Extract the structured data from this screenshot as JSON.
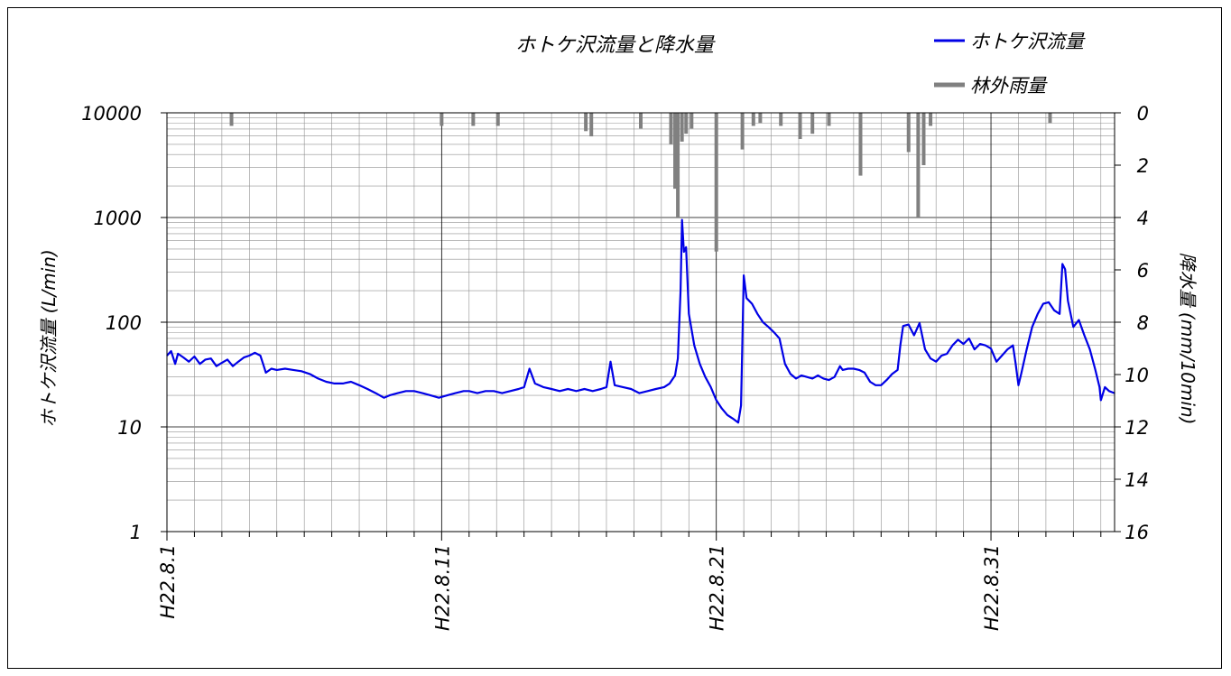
{
  "chart_data": {
    "type": "line",
    "title": "ホトケ沢流量と降水量",
    "y_left_label": "ホトケ沢流量 (L/min)",
    "y_right_label": "降水量 (mm/10min)",
    "x_axis": {
      "unit": "day of August 2010 (H22)",
      "range": [
        1,
        35.5
      ],
      "major_ticks": [
        1,
        11,
        21,
        31
      ],
      "tick_labels": [
        "H22.8.1",
        "H22.8.11",
        "H22.8.21",
        "H22.8.31"
      ],
      "minor_tick_interval": 1
    },
    "y_left": {
      "scale": "log",
      "range": [
        1,
        10000
      ],
      "ticks": [
        1,
        10,
        100,
        1000,
        10000
      ],
      "tick_labels": [
        "1",
        "10",
        "100",
        "1000",
        "10000"
      ]
    },
    "y_right": {
      "scale": "linear",
      "inverted": true,
      "range": [
        0,
        16
      ],
      "ticks": [
        0,
        2,
        4,
        6,
        8,
        10,
        12,
        14,
        16
      ],
      "tick_labels": [
        "0",
        "2",
        "4",
        "6",
        "8",
        "10",
        "12",
        "14",
        "16"
      ]
    },
    "grid": true,
    "legend_position": "top-right",
    "series": [
      {
        "name": "ホトケ沢流量",
        "color": "#0000e6",
        "axis": "left",
        "points": [
          [
            1.0,
            48
          ],
          [
            1.15,
            53
          ],
          [
            1.3,
            40
          ],
          [
            1.4,
            50
          ],
          [
            1.6,
            46
          ],
          [
            1.8,
            42
          ],
          [
            2.0,
            47
          ],
          [
            2.2,
            40
          ],
          [
            2.4,
            44
          ],
          [
            2.6,
            45
          ],
          [
            2.8,
            38
          ],
          [
            3.0,
            41
          ],
          [
            3.2,
            44
          ],
          [
            3.4,
            38
          ],
          [
            3.6,
            42
          ],
          [
            3.8,
            46
          ],
          [
            4.0,
            48
          ],
          [
            4.2,
            51
          ],
          [
            4.4,
            48
          ],
          [
            4.5,
            40
          ],
          [
            4.6,
            33
          ],
          [
            4.8,
            36
          ],
          [
            5.0,
            35
          ],
          [
            5.3,
            36
          ],
          [
            5.6,
            35
          ],
          [
            5.9,
            34
          ],
          [
            6.2,
            32
          ],
          [
            6.5,
            29
          ],
          [
            6.8,
            27
          ],
          [
            7.1,
            26
          ],
          [
            7.4,
            26
          ],
          [
            7.7,
            27
          ],
          [
            8.0,
            25
          ],
          [
            8.3,
            23
          ],
          [
            8.6,
            21
          ],
          [
            8.9,
            19
          ],
          [
            9.1,
            20
          ],
          [
            9.4,
            21
          ],
          [
            9.7,
            22
          ],
          [
            10.0,
            22
          ],
          [
            10.3,
            21
          ],
          [
            10.6,
            20
          ],
          [
            10.9,
            19
          ],
          [
            11.2,
            20
          ],
          [
            11.5,
            21
          ],
          [
            11.8,
            22
          ],
          [
            12.0,
            22
          ],
          [
            12.3,
            21
          ],
          [
            12.6,
            22
          ],
          [
            12.9,
            22
          ],
          [
            13.2,
            21
          ],
          [
            13.5,
            22
          ],
          [
            13.8,
            23
          ],
          [
            14.0,
            24
          ],
          [
            14.2,
            36
          ],
          [
            14.4,
            26
          ],
          [
            14.7,
            24
          ],
          [
            15.0,
            23
          ],
          [
            15.3,
            22
          ],
          [
            15.6,
            23
          ],
          [
            15.9,
            22
          ],
          [
            16.2,
            23
          ],
          [
            16.5,
            22
          ],
          [
            16.8,
            23
          ],
          [
            17.0,
            24
          ],
          [
            17.15,
            42
          ],
          [
            17.3,
            25
          ],
          [
            17.6,
            24
          ],
          [
            17.9,
            23
          ],
          [
            18.2,
            21
          ],
          [
            18.5,
            22
          ],
          [
            18.8,
            23
          ],
          [
            19.1,
            24
          ],
          [
            19.3,
            26
          ],
          [
            19.5,
            31
          ],
          [
            19.6,
            45
          ],
          [
            19.7,
            200
          ],
          [
            19.75,
            950
          ],
          [
            19.82,
            470
          ],
          [
            19.9,
            520
          ],
          [
            20.0,
            120
          ],
          [
            20.2,
            60
          ],
          [
            20.4,
            40
          ],
          [
            20.6,
            30
          ],
          [
            20.8,
            24
          ],
          [
            21.0,
            18
          ],
          [
            21.2,
            15
          ],
          [
            21.4,
            13
          ],
          [
            21.6,
            12
          ],
          [
            21.8,
            11
          ],
          [
            21.9,
            16
          ],
          [
            22.0,
            280
          ],
          [
            22.1,
            170
          ],
          [
            22.3,
            150
          ],
          [
            22.5,
            120
          ],
          [
            22.7,
            100
          ],
          [
            22.9,
            90
          ],
          [
            23.1,
            80
          ],
          [
            23.3,
            70
          ],
          [
            23.5,
            40
          ],
          [
            23.7,
            32
          ],
          [
            23.9,
            29
          ],
          [
            24.1,
            31
          ],
          [
            24.3,
            30
          ],
          [
            24.5,
            29
          ],
          [
            24.7,
            31
          ],
          [
            24.9,
            29
          ],
          [
            25.1,
            28
          ],
          [
            25.3,
            30
          ],
          [
            25.5,
            38
          ],
          [
            25.6,
            35
          ],
          [
            25.8,
            36
          ],
          [
            26.0,
            36
          ],
          [
            26.2,
            35
          ],
          [
            26.4,
            33
          ],
          [
            26.6,
            27
          ],
          [
            26.8,
            25
          ],
          [
            27.0,
            25
          ],
          [
            27.2,
            28
          ],
          [
            27.4,
            32
          ],
          [
            27.6,
            35
          ],
          [
            27.7,
            60
          ],
          [
            27.8,
            92
          ],
          [
            28.0,
            95
          ],
          [
            28.2,
            75
          ],
          [
            28.4,
            98
          ],
          [
            28.6,
            55
          ],
          [
            28.8,
            45
          ],
          [
            29.0,
            42
          ],
          [
            29.2,
            48
          ],
          [
            29.4,
            50
          ],
          [
            29.6,
            60
          ],
          [
            29.8,
            68
          ],
          [
            30.0,
            62
          ],
          [
            30.2,
            70
          ],
          [
            30.4,
            55
          ],
          [
            30.6,
            62
          ],
          [
            30.8,
            60
          ],
          [
            31.0,
            56
          ],
          [
            31.2,
            42
          ],
          [
            31.4,
            48
          ],
          [
            31.6,
            55
          ],
          [
            31.8,
            60
          ],
          [
            31.9,
            40
          ],
          [
            32.0,
            25
          ],
          [
            32.1,
            32
          ],
          [
            32.3,
            55
          ],
          [
            32.5,
            90
          ],
          [
            32.7,
            120
          ],
          [
            32.9,
            150
          ],
          [
            33.1,
            155
          ],
          [
            33.3,
            130
          ],
          [
            33.5,
            120
          ],
          [
            33.6,
            360
          ],
          [
            33.7,
            320
          ],
          [
            33.8,
            160
          ],
          [
            34.0,
            90
          ],
          [
            34.2,
            105
          ],
          [
            34.4,
            75
          ],
          [
            34.6,
            55
          ],
          [
            34.8,
            35
          ],
          [
            34.95,
            24
          ],
          [
            35.0,
            18
          ],
          [
            35.15,
            24
          ],
          [
            35.3,
            22
          ],
          [
            35.5,
            21
          ]
        ]
      },
      {
        "name": "林外雨量",
        "color": "#808080",
        "axis": "right",
        "points": [
          [
            3.35,
            0.5
          ],
          [
            11.0,
            0.5
          ],
          [
            12.15,
            0.5
          ],
          [
            13.05,
            0.5
          ],
          [
            16.25,
            0.7
          ],
          [
            16.45,
            0.9
          ],
          [
            18.25,
            0.6
          ],
          [
            19.35,
            1.2
          ],
          [
            19.5,
            2.9
          ],
          [
            19.6,
            4.0
          ],
          [
            19.75,
            1.1
          ],
          [
            19.9,
            0.8
          ],
          [
            20.1,
            0.6
          ],
          [
            21.0,
            5.3
          ],
          [
            21.95,
            1.4
          ],
          [
            22.35,
            0.5
          ],
          [
            22.6,
            0.4
          ],
          [
            23.35,
            0.5
          ],
          [
            24.05,
            1.0
          ],
          [
            24.5,
            0.8
          ],
          [
            25.1,
            0.5
          ],
          [
            26.25,
            2.4
          ],
          [
            28.0,
            1.5
          ],
          [
            28.35,
            4.0
          ],
          [
            28.55,
            2.0
          ],
          [
            28.8,
            0.5
          ],
          [
            33.15,
            0.4
          ]
        ]
      }
    ]
  }
}
